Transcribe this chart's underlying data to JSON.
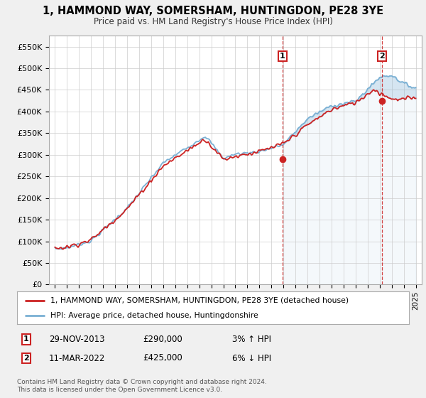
{
  "title": "1, HAMMOND WAY, SOMERSHAM, HUNTINGDON, PE28 3YE",
  "subtitle": "Price paid vs. HM Land Registry's House Price Index (HPI)",
  "ylabel_ticks": [
    "£0",
    "£50K",
    "£100K",
    "£150K",
    "£200K",
    "£250K",
    "£300K",
    "£350K",
    "£400K",
    "£450K",
    "£500K",
    "£550K"
  ],
  "ytick_vals": [
    0,
    50000,
    100000,
    150000,
    200000,
    250000,
    300000,
    350000,
    400000,
    450000,
    500000,
    550000
  ],
  "ylim": [
    0,
    575000
  ],
  "xlim_start": 1994.5,
  "xlim_end": 2025.5,
  "bg_color": "#f0f0f0",
  "plot_bg_color": "#ffffff",
  "hpi_color": "#7ab0d4",
  "sale_color": "#cc2222",
  "fill_color": "#d0e8f5",
  "marker1_x": 2013.92,
  "marker1_y": 290000,
  "marker2_x": 2022.19,
  "marker2_y": 425000,
  "legend_sale": "1, HAMMOND WAY, SOMERSHAM, HUNTINGDON, PE28 3YE (detached house)",
  "legend_hpi": "HPI: Average price, detached house, Huntingdonshire",
  "annotation1_date": "29-NOV-2013",
  "annotation1_price": "£290,000",
  "annotation1_hpi": "3% ↑ HPI",
  "annotation2_date": "11-MAR-2022",
  "annotation2_price": "£425,000",
  "annotation2_hpi": "6% ↓ HPI",
  "footer": "Contains HM Land Registry data © Crown copyright and database right 2024.\nThis data is licensed under the Open Government Licence v3.0.",
  "xtick_years": [
    1995,
    1996,
    1997,
    1998,
    1999,
    2000,
    2001,
    2002,
    2003,
    2004,
    2005,
    2006,
    2007,
    2008,
    2009,
    2010,
    2011,
    2012,
    2013,
    2014,
    2015,
    2016,
    2017,
    2018,
    2019,
    2020,
    2021,
    2022,
    2023,
    2024,
    2025
  ]
}
